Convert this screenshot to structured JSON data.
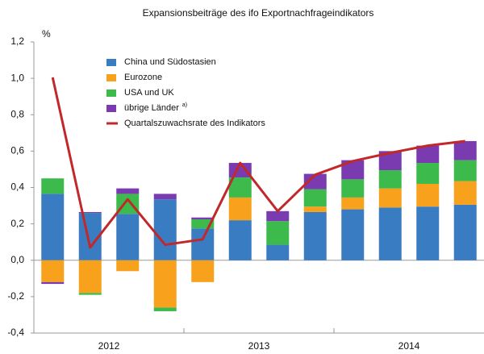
{
  "chart_data": {
    "type": "stacked-bar-line",
    "title": "Expansionsbeiträge des ifo Exportnachfrageindikators",
    "y_unit": "%",
    "categories": [
      null,
      null,
      null,
      null,
      null,
      null,
      null,
      null,
      null,
      null,
      null,
      null
    ],
    "groups": [
      "2012",
      "2013",
      "2014"
    ],
    "series": [
      {
        "name": "China und Südostasien",
        "color": "#3a7cc2",
        "values": [
          0.365,
          0.26,
          0.255,
          0.335,
          0.175,
          0.22,
          0.085,
          0.265,
          0.28,
          0.29,
          0.295,
          0.305
        ]
      },
      {
        "name": "Eurozone",
        "color": "#f7a11d",
        "values": [
          -0.12,
          -0.18,
          -0.06,
          -0.26,
          -0.12,
          0.125,
          0,
          0.03,
          0.065,
          0.105,
          0.125,
          0.13
        ]
      },
      {
        "name": "USA und UK",
        "color": "#3cbb4c",
        "values": [
          0.085,
          -0.01,
          0.11,
          -0.02,
          0.05,
          0.11,
          0.13,
          0.095,
          0.1,
          0.1,
          0.115,
          0.115
        ]
      },
      {
        "name": "übrige Länder",
        "name_note": "a)",
        "color": "#7a3ab0",
        "values": [
          -0.01,
          0.005,
          0.03,
          0.03,
          0.01,
          0.08,
          0.055,
          0.085,
          0.105,
          0.105,
          0.095,
          0.105
        ]
      }
    ],
    "line": {
      "name": "Quartalszuwachsrate des Indikators",
      "color": "#c0282a",
      "values": [
        1.005,
        0.07,
        0.335,
        0.085,
        0.115,
        0.535,
        0.27,
        0.47,
        0.545,
        0.59,
        0.63,
        0.655
      ]
    },
    "ylim": [
      -0.4,
      1.2
    ],
    "yticks": [
      {
        "value": -0.4,
        "label": "-0,4"
      },
      {
        "value": -0.2,
        "label": "-0,2"
      },
      {
        "value": 0,
        "label": "0,0"
      },
      {
        "value": 0.2,
        "label": "0,2"
      },
      {
        "value": 0.4,
        "label": "0,4"
      },
      {
        "value": 0.6,
        "label": "0,6"
      },
      {
        "value": 0.8,
        "label": "0,8"
      },
      {
        "value": 1.0,
        "label": "1,0"
      },
      {
        "value": 1.2,
        "label": "1,2"
      }
    ],
    "legend": "upper left"
  }
}
